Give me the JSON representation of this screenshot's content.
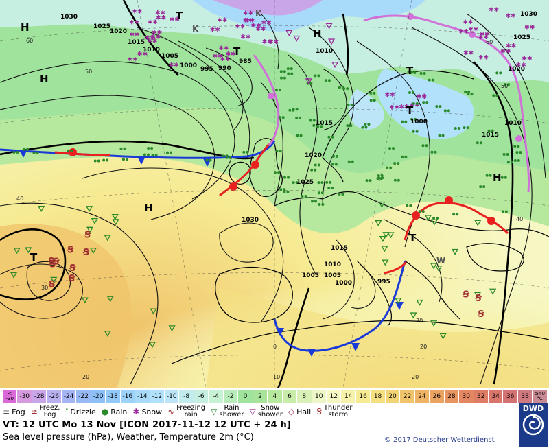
{
  "valid_time": "VT: 12 UTC Mo  13 Nov [ICON 2017-11-12  12 UTC + 24 h]",
  "subtitle": "Sea level pressure (hPa), Weather, Temperature 2m (°C)",
  "copyright": "© 2017 Deutscher Wetterdienst",
  "logo_text": "DWD",
  "colorbar": [
    {
      "label": "<\n-30",
      "color": "#d96ad8"
    },
    {
      "label": "-30",
      "color": "#d69adf"
    },
    {
      "label": "-28",
      "color": "#c9a6e8"
    },
    {
      "label": "-26",
      "color": "#b9b0ef"
    },
    {
      "label": "-24",
      "color": "#a6b5f3"
    },
    {
      "label": "-22",
      "color": "#97baf6"
    },
    {
      "label": "-20",
      "color": "#8cc0f7"
    },
    {
      "label": "-18",
      "color": "#92c9f8"
    },
    {
      "label": "-16",
      "color": "#9dd2f9"
    },
    {
      "label": "-14",
      "color": "#a8dafa"
    },
    {
      "label": "-12",
      "color": "#b2e1fb"
    },
    {
      "label": "-10",
      "color": "#bce6f7"
    },
    {
      "label": "-8",
      "color": "#c2ebee"
    },
    {
      "label": "-6",
      "color": "#c6efe2"
    },
    {
      "label": "-4",
      "color": "#c8f2d4"
    },
    {
      "label": "-2",
      "color": "#b9ecbb"
    },
    {
      "label": "0",
      "color": "#9fe39c"
    },
    {
      "label": "2",
      "color": "#a7e49a"
    },
    {
      "label": "4",
      "color": "#b6e89e"
    },
    {
      "label": "6",
      "color": "#c8ecaa"
    },
    {
      "label": "8",
      "color": "#d9f1b8"
    },
    {
      "label": "10",
      "color": "#ecf6c6"
    },
    {
      "label": "12",
      "color": "#f6f7c2"
    },
    {
      "label": "14",
      "color": "#f7f2ab"
    },
    {
      "label": "16",
      "color": "#f6ea92"
    },
    {
      "label": "18",
      "color": "#f4e081"
    },
    {
      "label": "20",
      "color": "#f2d474"
    },
    {
      "label": "22",
      "color": "#f0c46b"
    },
    {
      "label": "24",
      "color": "#eeb365"
    },
    {
      "label": "26",
      "color": "#eba362"
    },
    {
      "label": "28",
      "color": "#e89461"
    },
    {
      "label": "30",
      "color": "#e38762"
    },
    {
      "label": "32",
      "color": "#de7d65"
    },
    {
      "label": "34",
      "color": "#d9766b"
    },
    {
      "label": "36",
      "color": "#d47373"
    },
    {
      "label": "38",
      "color": "#cf7a80"
    },
    {
      "label": "≥40\n°C",
      "color": "#c98a93"
    }
  ],
  "legend": [
    {
      "icon": "fog-icon",
      "symbol": "≡",
      "label": "Fog",
      "color": "#555555"
    },
    {
      "icon": "freezing-fog-icon",
      "symbol": "≆",
      "label": "Freez.\nFog",
      "color": "#a03030"
    },
    {
      "icon": "drizzle-icon",
      "symbol": "❜",
      "label": "Drizzle",
      "color": "#2a8a2a"
    },
    {
      "icon": "rain-icon",
      "symbol": "●",
      "label": "Rain",
      "color": "#2a8a2a"
    },
    {
      "icon": "snow-icon",
      "symbol": "✱",
      "label": "Snow",
      "color": "#9a2a9a"
    },
    {
      "icon": "freezing-rain-icon",
      "symbol": "∿",
      "label": "Freezing\nrain",
      "color": "#a03030"
    },
    {
      "icon": "rain-shower-icon",
      "symbol": "▽",
      "label": "Rain\nshower",
      "color": "#2a8a2a"
    },
    {
      "icon": "snow-shower-icon",
      "symbol": "▽",
      "label": "Snow\nshower",
      "color": "#9a2a9a"
    },
    {
      "icon": "hail-icon",
      "symbol": "◇",
      "label": "Hail",
      "color": "#9a2a4a"
    },
    {
      "icon": "thunderstorm-icon",
      "symbol": "Ꞩ",
      "label": "Thunder\nstorm",
      "color": "#a03030"
    }
  ],
  "map": {
    "pressure_labels": [
      "1030",
      "1025",
      "1020",
      "1015",
      "1010",
      "1005",
      "1000",
      "995",
      "990",
      "985",
      "1030",
      "1025",
      "1020",
      "1015",
      "1010",
      "1005",
      "1000",
      "995",
      "1010",
      "1000",
      "1015",
      "1020",
      "1025",
      "1010",
      "1005",
      "1000",
      "1015",
      "1030"
    ],
    "centers": [
      {
        "kind": "H",
        "label": "H"
      },
      {
        "kind": "H",
        "label": "H"
      },
      {
        "kind": "H",
        "label": "H"
      },
      {
        "kind": "H",
        "label": "H"
      },
      {
        "kind": "H",
        "label": "H"
      },
      {
        "kind": "T",
        "label": "T"
      },
      {
        "kind": "T",
        "label": "T"
      },
      {
        "kind": "T",
        "label": "T"
      },
      {
        "kind": "T",
        "label": "T"
      },
      {
        "kind": "T",
        "label": "T"
      },
      {
        "kind": "T",
        "label": "T"
      },
      {
        "kind": "K",
        "label": "K"
      },
      {
        "kind": "K",
        "label": "K"
      },
      {
        "kind": "W",
        "label": "W"
      }
    ],
    "lat_labels": [
      "60",
      "50",
      "40",
      "30",
      "20",
      "60",
      "50",
      "40",
      "30",
      "20"
    ],
    "lon_labels": [
      "0",
      "10",
      "20"
    ]
  }
}
